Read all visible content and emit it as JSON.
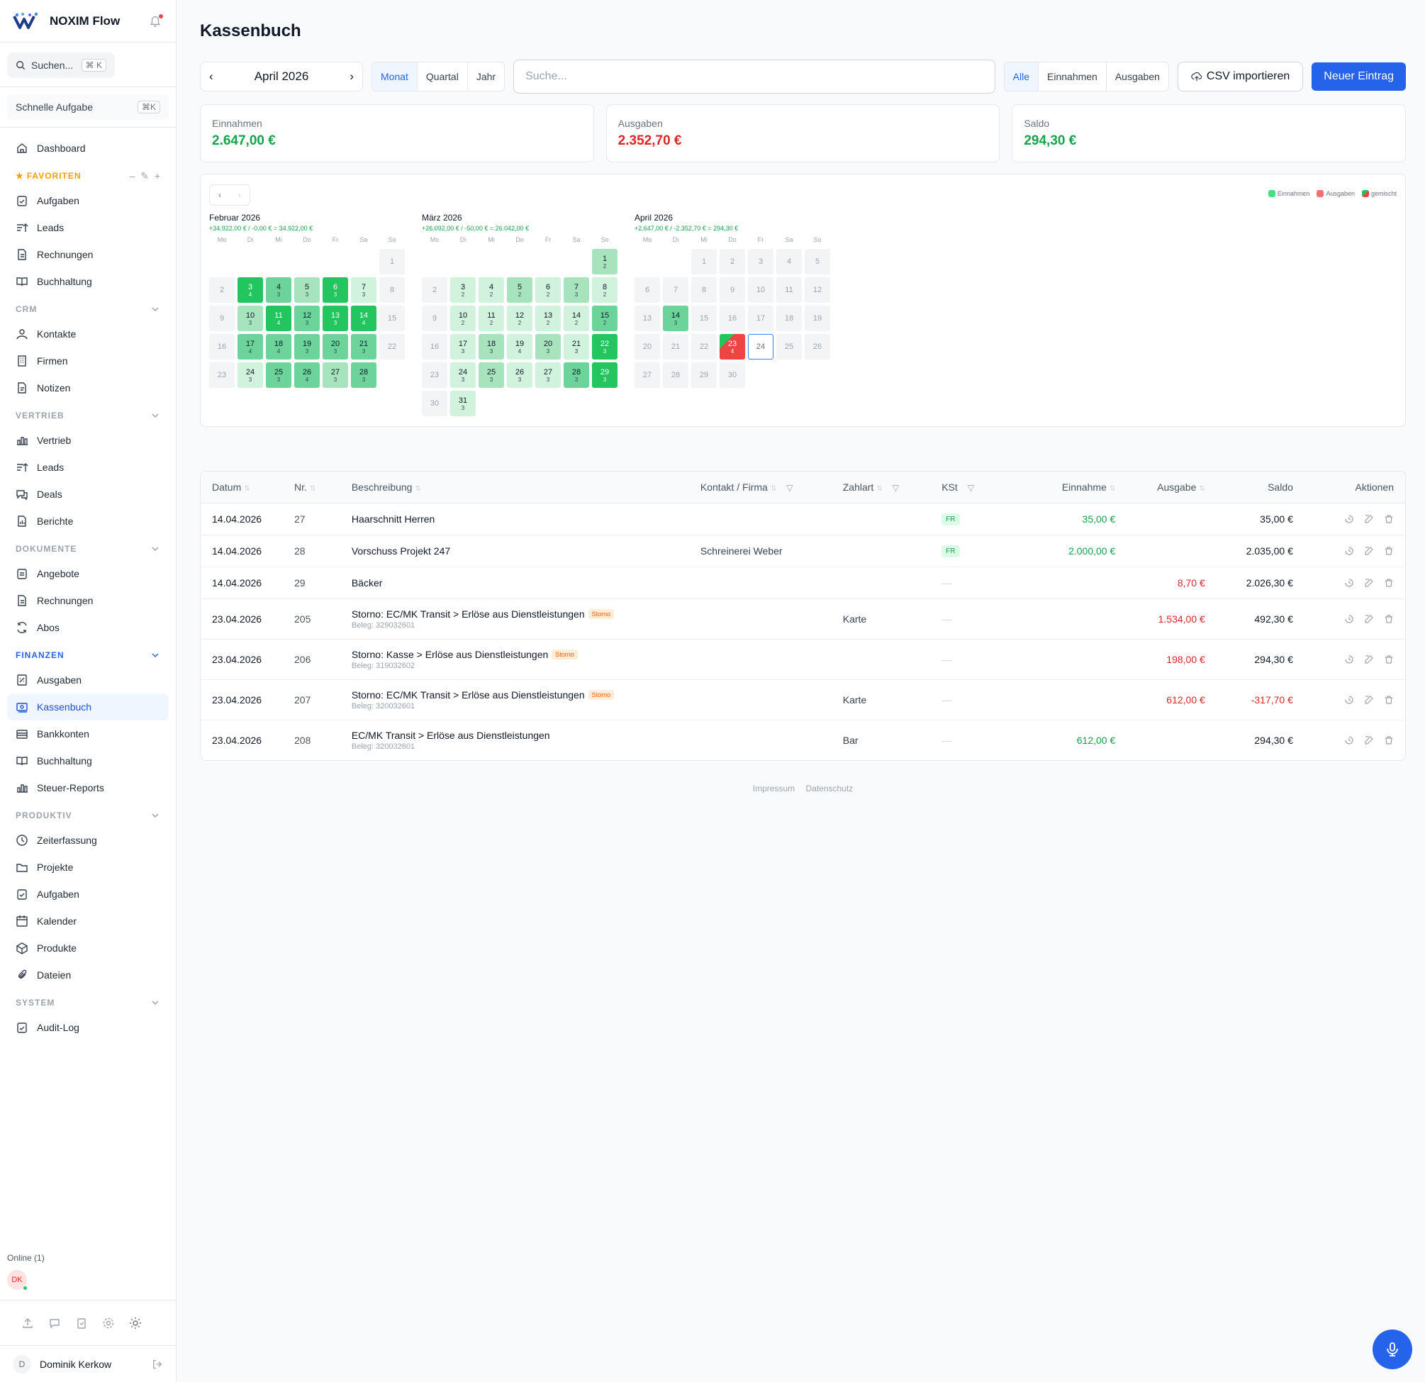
{
  "app": {
    "name": "NOXIM Flow"
  },
  "sidebar": {
    "search_label": "Suchen...",
    "search_kbd": "⌘ K",
    "quick_label": "Schnelle Aufgabe",
    "quick_kbd": "⌘K",
    "dashboard": "Dashboard",
    "favorites_title": "FAVORITEN",
    "favorites": [
      "Aufgaben",
      "Leads",
      "Rechnungen",
      "Buchhaltung"
    ],
    "crm_title": "CRM",
    "crm": [
      "Kontakte",
      "Firmen",
      "Notizen"
    ],
    "vertrieb_title": "VERTRIEB",
    "vertrieb": [
      "Vertrieb",
      "Leads",
      "Deals",
      "Berichte"
    ],
    "dokumente_title": "DOKUMENTE",
    "dokumente": [
      "Angebote",
      "Rechnungen",
      "Abos"
    ],
    "finanzen_title": "FINANZEN",
    "finanzen": [
      "Ausgaben",
      "Kassenbuch",
      "Bankkonten",
      "Buchhaltung",
      "Steuer-Reports"
    ],
    "produktiv_title": "PRODUKTIV",
    "produktiv": [
      "Zeiterfassung",
      "Projekte",
      "Aufgaben",
      "Kalender",
      "Produkte",
      "Dateien"
    ],
    "system_title": "SYSTEM",
    "system": [
      "Audit-Log"
    ],
    "online_label": "Online (1)",
    "online_avatar": "DK",
    "user_initial": "D",
    "user_name": "Dominik Kerkow"
  },
  "page": {
    "title": "Kassenbuch",
    "period": "April 2026",
    "period_tabs": [
      "Monat",
      "Quartal",
      "Jahr"
    ],
    "active_period_tab": "Monat",
    "search_placeholder": "Suche...",
    "type_filter": [
      "Alle",
      "Einnahmen",
      "Ausgaben"
    ],
    "active_type_filter": "Alle",
    "csv_button": "CSV importieren",
    "new_button": "Neuer Eintrag"
  },
  "stats": [
    {
      "label": "Einnahmen",
      "value": "2.647,00 €",
      "tone": "green"
    },
    {
      "label": "Ausgaben",
      "value": "2.352,70 €",
      "tone": "red"
    },
    {
      "label": "Saldo",
      "value": "294,30 €",
      "tone": "green"
    }
  ],
  "calendar": {
    "legend": [
      "Einnahmen",
      "Ausgaben",
      "gemischt"
    ],
    "weekdays": [
      "Mo",
      "Di",
      "Mi",
      "Do",
      "Fr",
      "Sa",
      "So"
    ],
    "months": [
      {
        "name": "Februar 2026",
        "summary": "+34.922,00 € / -0,00 € = 34.922,00 €",
        "offset": 6,
        "days": [
          {
            "d": 1,
            "c": null,
            "lvl": 0
          },
          {
            "d": 2,
            "c": null,
            "lvl": 0
          },
          {
            "d": 3,
            "c": 4,
            "lvl": 4
          },
          {
            "d": 4,
            "c": 3,
            "lvl": 3
          },
          {
            "d": 5,
            "c": 3,
            "lvl": 2
          },
          {
            "d": 6,
            "c": 3,
            "lvl": 4
          },
          {
            "d": 7,
            "c": 3,
            "lvl": 1
          },
          {
            "d": 8,
            "c": null,
            "lvl": 0
          },
          {
            "d": 9,
            "c": null,
            "lvl": 0
          },
          {
            "d": 10,
            "c": 3,
            "lvl": 2
          },
          {
            "d": 11,
            "c": 4,
            "lvl": 4
          },
          {
            "d": 12,
            "c": 3,
            "lvl": 3
          },
          {
            "d": 13,
            "c": 3,
            "lvl": 4
          },
          {
            "d": 14,
            "c": 4,
            "lvl": 4
          },
          {
            "d": 15,
            "c": null,
            "lvl": 0
          },
          {
            "d": 16,
            "c": null,
            "lvl": 0
          },
          {
            "d": 17,
            "c": 4,
            "lvl": 3
          },
          {
            "d": 18,
            "c": 4,
            "lvl": 3
          },
          {
            "d": 19,
            "c": 3,
            "lvl": 3
          },
          {
            "d": 20,
            "c": 3,
            "lvl": 3
          },
          {
            "d": 21,
            "c": 3,
            "lvl": 3
          },
          {
            "d": 22,
            "c": null,
            "lvl": 0
          },
          {
            "d": 23,
            "c": null,
            "lvl": 0
          },
          {
            "d": 24,
            "c": 3,
            "lvl": 1
          },
          {
            "d": 25,
            "c": 3,
            "lvl": 3
          },
          {
            "d": 26,
            "c": 4,
            "lvl": 3
          },
          {
            "d": 27,
            "c": 3,
            "lvl": 2
          },
          {
            "d": 28,
            "c": 3,
            "lvl": 3
          }
        ]
      },
      {
        "name": "März 2026",
        "summary": "+26.092,00 € / -50,00 € = 26.042,00 €",
        "offset": 6,
        "days": [
          {
            "d": 1,
            "c": 2,
            "lvl": 2
          },
          {
            "d": 2,
            "c": null,
            "lvl": 0
          },
          {
            "d": 3,
            "c": 2,
            "lvl": 1
          },
          {
            "d": 4,
            "c": 2,
            "lvl": 1
          },
          {
            "d": 5,
            "c": 2,
            "lvl": 2
          },
          {
            "d": 6,
            "c": 2,
            "lvl": 1
          },
          {
            "d": 7,
            "c": 3,
            "lvl": 2
          },
          {
            "d": 8,
            "c": 2,
            "lvl": 1
          },
          {
            "d": 9,
            "c": null,
            "lvl": 0
          },
          {
            "d": 10,
            "c": 2,
            "lvl": 1
          },
          {
            "d": 11,
            "c": 2,
            "lvl": 1
          },
          {
            "d": 12,
            "c": 2,
            "lvl": 1
          },
          {
            "d": 13,
            "c": 2,
            "lvl": 1
          },
          {
            "d": 14,
            "c": 2,
            "lvl": 1
          },
          {
            "d": 15,
            "c": 2,
            "lvl": 3
          },
          {
            "d": 16,
            "c": null,
            "lvl": 0
          },
          {
            "d": 17,
            "c": 3,
            "lvl": 1
          },
          {
            "d": 18,
            "c": 3,
            "lvl": 2
          },
          {
            "d": 19,
            "c": 4,
            "lvl": 1
          },
          {
            "d": 20,
            "c": 3,
            "lvl": 2
          },
          {
            "d": 21,
            "c": 3,
            "lvl": 1
          },
          {
            "d": 22,
            "c": 3,
            "lvl": 4
          },
          {
            "d": 23,
            "c": null,
            "lvl": 0
          },
          {
            "d": 24,
            "c": 3,
            "lvl": 1
          },
          {
            "d": 25,
            "c": 3,
            "lvl": 2
          },
          {
            "d": 26,
            "c": 3,
            "lvl": 1
          },
          {
            "d": 27,
            "c": 3,
            "lvl": 1
          },
          {
            "d": 28,
            "c": 3,
            "lvl": 3
          },
          {
            "d": 29,
            "c": 3,
            "lvl": 4
          },
          {
            "d": 30,
            "c": null,
            "lvl": 0
          },
          {
            "d": 31,
            "c": 3,
            "lvl": 1
          }
        ]
      },
      {
        "name": "April 2026",
        "summary": "+2.647,00 € / -2.352,70 € = 294,30 €",
        "offset": 2,
        "days": [
          {
            "d": 1,
            "c": null,
            "lvl": 0
          },
          {
            "d": 2,
            "c": null,
            "lvl": 0
          },
          {
            "d": 3,
            "c": null,
            "lvl": 0
          },
          {
            "d": 4,
            "c": null,
            "lvl": 0
          },
          {
            "d": 5,
            "c": null,
            "lvl": 0
          },
          {
            "d": 6,
            "c": null,
            "lvl": 0
          },
          {
            "d": 7,
            "c": null,
            "lvl": 0
          },
          {
            "d": 8,
            "c": null,
            "lvl": 0
          },
          {
            "d": 9,
            "c": null,
            "lvl": 0
          },
          {
            "d": 10,
            "c": null,
            "lvl": 0
          },
          {
            "d": 11,
            "c": null,
            "lvl": 0
          },
          {
            "d": 12,
            "c": null,
            "lvl": 0
          },
          {
            "d": 13,
            "c": null,
            "lvl": 0
          },
          {
            "d": 14,
            "c": 3,
            "lvl": 3
          },
          {
            "d": 15,
            "c": null,
            "lvl": 0
          },
          {
            "d": 16,
            "c": null,
            "lvl": 0
          },
          {
            "d": 17,
            "c": null,
            "lvl": 0
          },
          {
            "d": 18,
            "c": null,
            "lvl": 0
          },
          {
            "d": 19,
            "c": null,
            "lvl": 0
          },
          {
            "d": 20,
            "c": null,
            "lvl": 0
          },
          {
            "d": 21,
            "c": null,
            "lvl": 0
          },
          {
            "d": 22,
            "c": null,
            "lvl": 0
          },
          {
            "d": 23,
            "c": 4,
            "lvl": "mix"
          },
          {
            "d": 24,
            "c": null,
            "lvl": "today"
          },
          {
            "d": 25,
            "c": null,
            "lvl": 0
          },
          {
            "d": 26,
            "c": null,
            "lvl": 0
          },
          {
            "d": 27,
            "c": null,
            "lvl": 0
          },
          {
            "d": 28,
            "c": null,
            "lvl": 0
          },
          {
            "d": 29,
            "c": null,
            "lvl": 0
          },
          {
            "d": 30,
            "c": null,
            "lvl": 0
          }
        ]
      }
    ]
  },
  "table": {
    "columns": [
      "Datum",
      "Nr.",
      "Beschreibung",
      "Kontakt / Firma",
      "Zahlart",
      "KSt",
      "Einnahme",
      "Ausgabe",
      "Saldo",
      "Aktionen"
    ],
    "rows": [
      {
        "datum": "14.04.2026",
        "nr": "27",
        "desc": "Haarschnitt Herren",
        "beleg": "",
        "storno": "",
        "kontakt": "",
        "zahlart": "",
        "kst": "FR",
        "einnahme": "35,00 €",
        "ausgabe": "",
        "saldo": "35,00 €",
        "saldo_neg": false
      },
      {
        "datum": "14.04.2026",
        "nr": "28",
        "desc": "Vorschuss Projekt 247",
        "beleg": "",
        "storno": "",
        "kontakt": "Schreinerei Weber",
        "zahlart": "",
        "kst": "FR",
        "einnahme": "2.000,00 €",
        "ausgabe": "",
        "saldo": "2.035,00 €",
        "saldo_neg": false
      },
      {
        "datum": "14.04.2026",
        "nr": "29",
        "desc": "Bäcker",
        "beleg": "",
        "storno": "",
        "kontakt": "",
        "zahlart": "",
        "kst": "",
        "einnahme": "",
        "ausgabe": "8,70 €",
        "saldo": "2.026,30 €",
        "saldo_neg": false
      },
      {
        "datum": "23.04.2026",
        "nr": "205",
        "desc": "Storno: EC/MK Transit > Erlöse aus Dienstleistungen",
        "beleg": "Beleg: 329032601",
        "storno": "Storno",
        "kontakt": "",
        "zahlart": "Karte",
        "kst": "",
        "einnahme": "",
        "ausgabe": "1.534,00 €",
        "saldo": "492,30 €",
        "saldo_neg": false
      },
      {
        "datum": "23.04.2026",
        "nr": "206",
        "desc": "Storno: Kasse > Erlöse aus Dienstleistungen",
        "beleg": "Beleg: 319032602",
        "storno": "Storno",
        "kontakt": "",
        "zahlart": "",
        "kst": "",
        "einnahme": "",
        "ausgabe": "198,00 €",
        "saldo": "294,30 €",
        "saldo_neg": false
      },
      {
        "datum": "23.04.2026",
        "nr": "207",
        "desc": "Storno: EC/MK Transit > Erlöse aus Dienstleistungen",
        "beleg": "Beleg: 320032601",
        "storno": "Storno",
        "kontakt": "",
        "zahlart": "Karte",
        "kst": "",
        "einnahme": "",
        "ausgabe": "612,00 €",
        "saldo": "-317,70 €",
        "saldo_neg": true
      },
      {
        "datum": "23.04.2026",
        "nr": "208",
        "desc": "EC/MK Transit > Erlöse aus Dienstleistungen",
        "beleg": "Beleg: 320032601",
        "storno": "",
        "kontakt": "",
        "zahlart": "Bar",
        "kst": "",
        "einnahme": "612,00 €",
        "ausgabe": "",
        "saldo": "294,30 €",
        "saldo_neg": false
      }
    ]
  },
  "footer": {
    "impressum": "Impressum",
    "datenschutz": "Datenschutz"
  },
  "colors": {
    "accent": "#2563eb",
    "income": "#16a34a",
    "expense": "#dc2626"
  }
}
